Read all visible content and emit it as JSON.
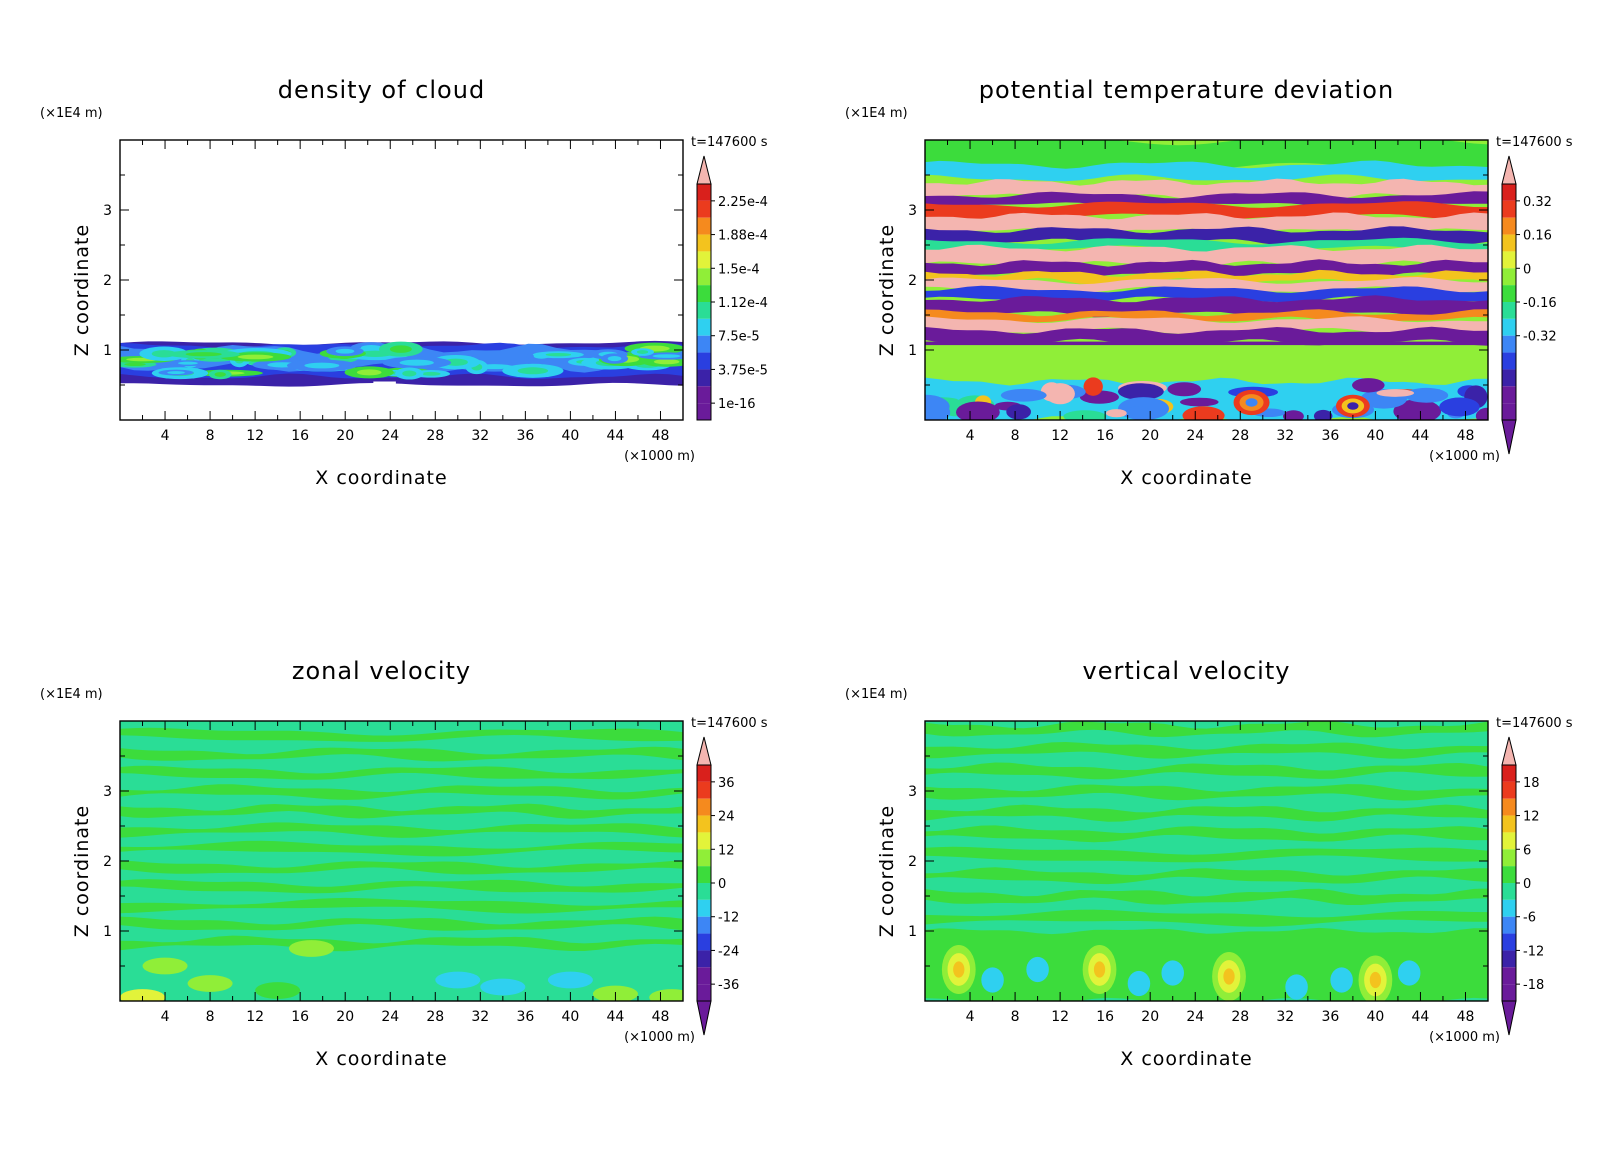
{
  "figure": {
    "timestamp": "t=147600 s",
    "x_unit_label": "(×1000 m)",
    "y_unit_label": "(×1E4 m)",
    "xlabel": "X coordinate",
    "ylabel": "Z coordinate"
  },
  "colormap": [
    "#6A1B9A",
    "#3B22A8",
    "#2A3FE0",
    "#3D86F5",
    "#2FD0F0",
    "#2ADD96",
    "#3CDC3C",
    "#90EE38",
    "#E2F33A",
    "#F3C31E",
    "#F58A1E",
    "#EB3B1E",
    "#D9201C",
    "#F4B5B0"
  ],
  "chart_data": [
    {
      "type": "heatmap",
      "title": "density of cloud",
      "xlabel": "X coordinate",
      "ylabel": "Z coordinate",
      "x_ticks": [
        4,
        8,
        12,
        16,
        20,
        24,
        28,
        32,
        36,
        40,
        44,
        48
      ],
      "y_ticks": [
        1,
        2,
        3
      ],
      "xlim": [
        0,
        50
      ],
      "ylim": [
        0,
        4
      ],
      "colorbar_labels": [
        "2.25e-4",
        "1.88e-4",
        "1.5e-4",
        "1.12e-4",
        "7.5e-5",
        "3.75e-5",
        "1e-16"
      ],
      "colorbar_extend": "max",
      "background": "white",
      "description_bands": [
        {
          "z": [
            0.5,
            1.1
          ],
          "level": "cloud layer",
          "mean_color_index": 4
        }
      ]
    },
    {
      "type": "heatmap",
      "title": "potential temperature deviation",
      "xlabel": "X coordinate",
      "ylabel": "Z coordinate",
      "x_ticks": [
        4,
        8,
        12,
        16,
        20,
        24,
        28,
        32,
        36,
        40,
        44,
        48
      ],
      "y_ticks": [
        1,
        2,
        3
      ],
      "xlim": [
        0,
        50
      ],
      "ylim": [
        0,
        4
      ],
      "colorbar_labels": [
        "0.32",
        "0.16",
        "0",
        "-0.16",
        "-0.32"
      ],
      "colorbar_extend": "both"
    },
    {
      "type": "heatmap",
      "title": "zonal velocity",
      "xlabel": "X coordinate",
      "ylabel": "Z coordinate",
      "x_ticks": [
        4,
        8,
        12,
        16,
        20,
        24,
        28,
        32,
        36,
        40,
        44,
        48
      ],
      "y_ticks": [
        1,
        2,
        3
      ],
      "xlim": [
        0,
        50
      ],
      "ylim": [
        0,
        4
      ],
      "colorbar_labels": [
        "36",
        "24",
        "12",
        "0",
        "-12",
        "-24",
        "-36"
      ],
      "colorbar_extend": "both"
    },
    {
      "type": "heatmap",
      "title": "vertical velocity",
      "xlabel": "X coordinate",
      "ylabel": "Z coordinate",
      "x_ticks": [
        4,
        8,
        12,
        16,
        20,
        24,
        28,
        32,
        36,
        40,
        44,
        48
      ],
      "y_ticks": [
        1,
        2,
        3
      ],
      "xlim": [
        0,
        50
      ],
      "ylim": [
        0,
        4
      ],
      "colorbar_labels": [
        "18",
        "12",
        "6",
        "0",
        "-6",
        "-12",
        "-18"
      ],
      "colorbar_extend": "both"
    }
  ]
}
